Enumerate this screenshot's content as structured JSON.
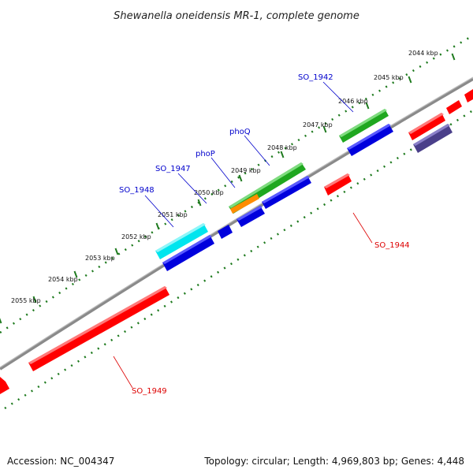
{
  "title": "Shewanella oneidensis MR-1, complete genome",
  "footer": {
    "accession": "Accession: NC_004347",
    "summary": "Topology: circular; Length: 4,969,803 bp; Genes: 4,448"
  },
  "colors": {
    "backbone": "#8a8a8a",
    "ruler": "#1e7a1e",
    "forward_cds": "#1fa71f",
    "reverse_cds": "#0000dd",
    "other_gene": "#ff0000",
    "cyan_feature": "#00e5ee",
    "orange_feature": "#ff8c00",
    "slate_feature": "#4a3f8a",
    "blue_label": "#0000cc",
    "red_label": "#dd0000"
  },
  "ticks": [
    "2044 kbp",
    "2045 kbp",
    "2046 kbp",
    "2047 kbp",
    "2048 kbp",
    "2049 kbp",
    "2050 kbp",
    "2051 kbp",
    "2052 kbp",
    "2053 kbp",
    "2054 kbp",
    "2055 kbp"
  ],
  "gene_labels": [
    {
      "name": "SO_1942",
      "color": "blue"
    },
    {
      "name": "phoQ",
      "color": "blue"
    },
    {
      "name": "phoP",
      "color": "blue"
    },
    {
      "name": "SO_1947",
      "color": "blue"
    },
    {
      "name": "SO_1948",
      "color": "blue"
    },
    {
      "name": "SO_1944",
      "color": "red"
    },
    {
      "name": "SO_1949",
      "color": "red"
    }
  ]
}
